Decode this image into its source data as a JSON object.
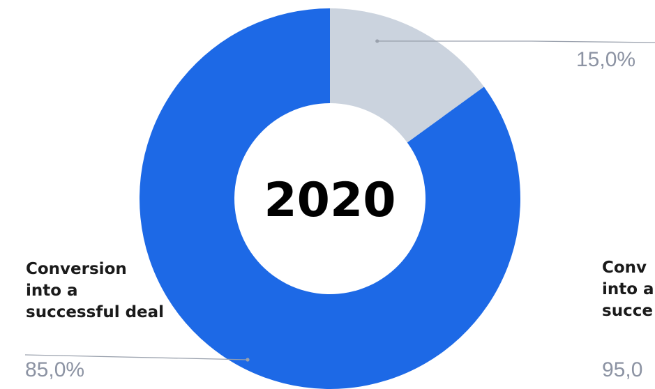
{
  "chart_data": {
    "type": "pie",
    "center_label": "2020",
    "slices": [
      {
        "label": "",
        "value": 15.0,
        "display": "15,0%",
        "color": "#cbd3de"
      },
      {
        "label": "Conversion into a successful deal",
        "value": 85.0,
        "display": "85,0%",
        "color": "#1d69e6"
      }
    ],
    "category_label_lines": [
      "Conversion",
      "into a",
      "successful deal"
    ],
    "partial_neighbor": {
      "category_label_lines": [
        "Conv",
        "into a",
        "succe"
      ],
      "display": "95,0"
    },
    "leader_color": "#9aa1ad"
  }
}
